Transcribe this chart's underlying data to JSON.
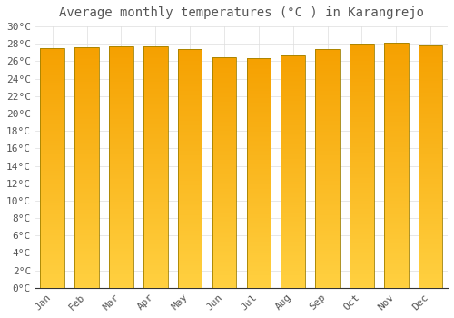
{
  "title": "Average monthly temperatures (°C ) in Karangrejo",
  "months": [
    "Jan",
    "Feb",
    "Mar",
    "Apr",
    "May",
    "Jun",
    "Jul",
    "Aug",
    "Sep",
    "Oct",
    "Nov",
    "Dec"
  ],
  "temperatures": [
    27.5,
    27.6,
    27.7,
    27.7,
    27.4,
    26.5,
    26.4,
    26.7,
    27.4,
    28.0,
    28.1,
    27.8
  ],
  "bar_color_top": "#F5A000",
  "bar_color_bottom": "#FFD040",
  "bar_edge_color": "#A08000",
  "background_color": "#FFFFFF",
  "plot_bg_color": "#FFFFFF",
  "grid_color": "#DDDDDD",
  "text_color": "#555555",
  "ylim": [
    0,
    30
  ],
  "yticks": [
    0,
    2,
    4,
    6,
    8,
    10,
    12,
    14,
    16,
    18,
    20,
    22,
    24,
    26,
    28,
    30
  ],
  "title_fontsize": 10,
  "tick_fontsize": 8,
  "bar_width": 0.7
}
